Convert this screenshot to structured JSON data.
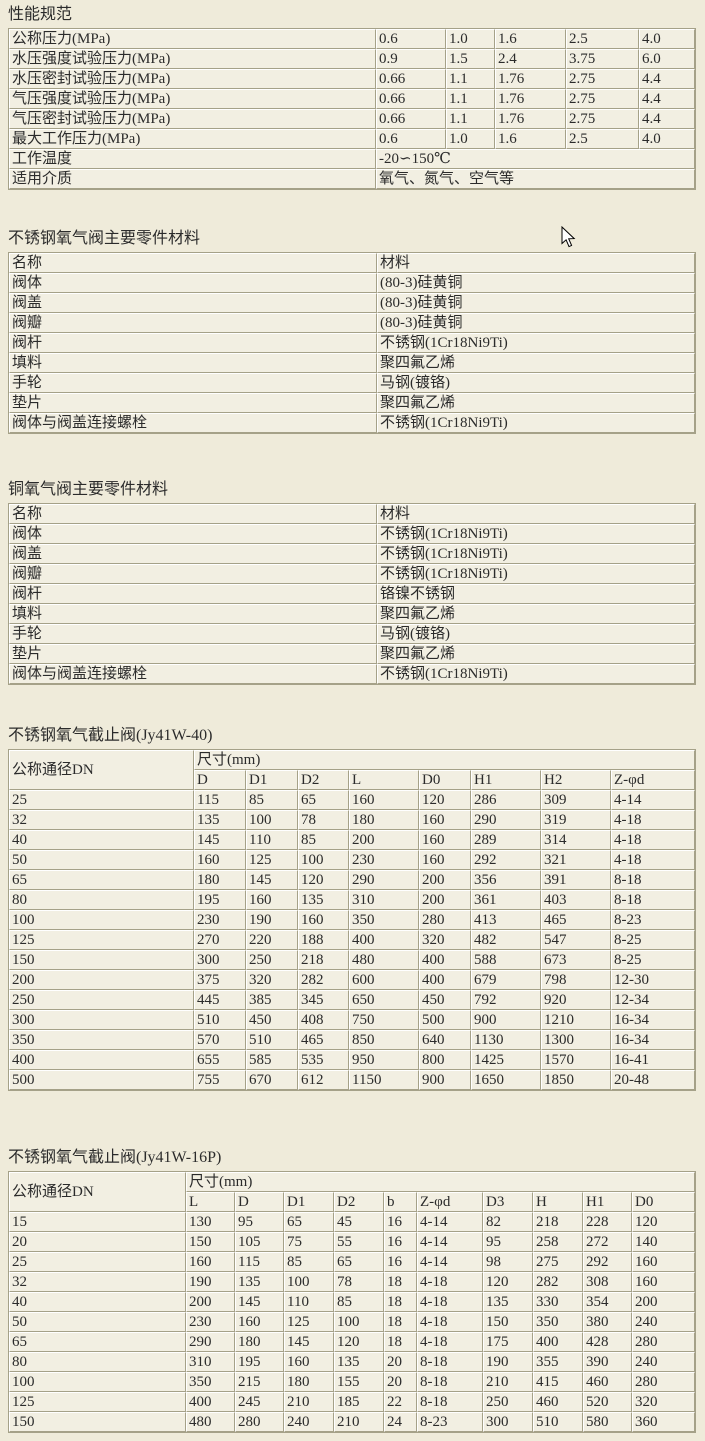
{
  "colors": {
    "page_bg": "#EFEBDA",
    "cell_bg": "#F2EFE2",
    "grid_dark": "#A5A188",
    "grid_light": "#FFFFFF",
    "text": "#2B2B2B"
  },
  "cursor": {
    "icon": "arrow-pointer-icon"
  },
  "sections": {
    "performance": {
      "title": "性能规范",
      "rows": [
        {
          "label": "公称压力(MPa)",
          "values": [
            "0.6",
            "1.0",
            "1.6",
            "2.5",
            "4.0"
          ]
        },
        {
          "label": "水压强度试验压力(MPa)",
          "values": [
            "0.9",
            "1.5",
            "2.4",
            "3.75",
            "6.0"
          ]
        },
        {
          "label": "水压密封试验压力(MPa)",
          "values": [
            "0.66",
            "1.1",
            "1.76",
            "2.75",
            "4.4"
          ]
        },
        {
          "label": "气压强度试验压力(MPa)",
          "values": [
            "0.66",
            "1.1",
            "1.76",
            "2.75",
            "4.4"
          ]
        },
        {
          "label": "气压密封试验压力(MPa)",
          "values": [
            "0.66",
            "1.1",
            "1.76",
            "2.75",
            "4.4"
          ]
        },
        {
          "label": "最大工作压力(MPa)",
          "values": [
            "0.6",
            "1.0",
            "1.6",
            "2.5",
            "4.0"
          ]
        },
        {
          "label": "工作温度",
          "span": "-20∽150℃"
        },
        {
          "label": "适用介质",
          "span": "氧气、氮气、空气等"
        }
      ]
    },
    "materials_ss": {
      "title": "不锈钢氧气阀主要零件材料",
      "headers": [
        "名称",
        "材料"
      ],
      "rows": [
        [
          "阀体",
          "(80-3)硅黄铜"
        ],
        [
          "阀盖",
          "(80-3)硅黄铜"
        ],
        [
          "阀瓣",
          "(80-3)硅黄铜"
        ],
        [
          "阀杆",
          "不锈钢(1Cr18Ni9Ti)"
        ],
        [
          "填料",
          "聚四氟乙烯"
        ],
        [
          "手轮",
          "马钢(镀铬)"
        ],
        [
          "垫片",
          "聚四氟乙烯"
        ],
        [
          "阀体与阀盖连接螺栓",
          "不锈钢(1Cr18Ni9Ti)"
        ]
      ]
    },
    "materials_cu": {
      "title": "铜氧气阀主要零件材料",
      "headers": [
        "名称",
        "材料"
      ],
      "rows": [
        [
          "阀体",
          "不锈钢(1Cr18Ni9Ti)"
        ],
        [
          "阀盖",
          "不锈钢(1Cr18Ni9Ti)"
        ],
        [
          "阀瓣",
          "不锈钢(1Cr18Ni9Ti)"
        ],
        [
          "阀杆",
          "铬镍不锈钢"
        ],
        [
          "填料",
          "聚四氟乙烯"
        ],
        [
          "手轮",
          "马钢(镀铬)"
        ],
        [
          "垫片",
          "聚四氟乙烯"
        ],
        [
          "阀体与阀盖连接螺栓",
          "不锈钢(1Cr18Ni9Ti)"
        ]
      ]
    },
    "dims_40": {
      "title": "不锈钢氧气截止阀(Jy41W-40)",
      "corner": "公称通径DN",
      "group": "尺寸(mm)",
      "cols": [
        "D",
        "D1",
        "D2",
        "L",
        "D0",
        "H1",
        "H2",
        "Z-φd"
      ],
      "rows": [
        [
          "25",
          "115",
          "85",
          "65",
          "160",
          "120",
          "286",
          "309",
          "4-14"
        ],
        [
          "32",
          "135",
          "100",
          "78",
          "180",
          "160",
          "290",
          "319",
          "4-18"
        ],
        [
          "40",
          "145",
          "110",
          "85",
          "200",
          "160",
          "289",
          "314",
          "4-18"
        ],
        [
          "50",
          "160",
          "125",
          "100",
          "230",
          "160",
          "292",
          "321",
          "4-18"
        ],
        [
          "65",
          "180",
          "145",
          "120",
          "290",
          "200",
          "356",
          "391",
          "8-18"
        ],
        [
          "80",
          "195",
          "160",
          "135",
          "310",
          "200",
          "361",
          "403",
          "8-18"
        ],
        [
          "100",
          "230",
          "190",
          "160",
          "350",
          "280",
          "413",
          "465",
          "8-23"
        ],
        [
          "125",
          "270",
          "220",
          "188",
          "400",
          "320",
          "482",
          "547",
          "8-25"
        ],
        [
          "150",
          "300",
          "250",
          "218",
          "480",
          "400",
          "588",
          "673",
          "8-25"
        ],
        [
          "200",
          "375",
          "320",
          "282",
          "600",
          "400",
          "679",
          "798",
          "12-30"
        ],
        [
          "250",
          "445",
          "385",
          "345",
          "650",
          "450",
          "792",
          "920",
          "12-34"
        ],
        [
          "300",
          "510",
          "450",
          "408",
          "750",
          "500",
          "900",
          "1210",
          "16-34"
        ],
        [
          "350",
          "570",
          "510",
          "465",
          "850",
          "640",
          "1130",
          "1300",
          "16-34"
        ],
        [
          "400",
          "655",
          "585",
          "535",
          "950",
          "800",
          "1425",
          "1570",
          "16-41"
        ],
        [
          "500",
          "755",
          "670",
          "612",
          "1150",
          "900",
          "1650",
          "1850",
          "20-48"
        ]
      ]
    },
    "dims_16p": {
      "title": "不锈钢氧气截止阀(Jy41W-16P)",
      "corner": "公称通径DN",
      "group": "尺寸(mm)",
      "cols": [
        "L",
        "D",
        "D1",
        "D2",
        "b",
        "Z-φd",
        "D3",
        "H",
        "H1",
        "D0"
      ],
      "rows": [
        [
          "15",
          "130",
          "95",
          "65",
          "45",
          "16",
          "4-14",
          "82",
          "218",
          "228",
          "120"
        ],
        [
          "20",
          "150",
          "105",
          "75",
          "55",
          "16",
          "4-14",
          "95",
          "258",
          "272",
          "140"
        ],
        [
          "25",
          "160",
          "115",
          "85",
          "65",
          "16",
          "4-14",
          "98",
          "275",
          "292",
          "160"
        ],
        [
          "32",
          "190",
          "135",
          "100",
          "78",
          "18",
          "4-18",
          "120",
          "282",
          "308",
          "160"
        ],
        [
          "40",
          "200",
          "145",
          "110",
          "85",
          "18",
          "4-18",
          "135",
          "330",
          "354",
          "200"
        ],
        [
          "50",
          "230",
          "160",
          "125",
          "100",
          "18",
          "4-18",
          "150",
          "350",
          "380",
          "240"
        ],
        [
          "65",
          "290",
          "180",
          "145",
          "120",
          "18",
          "4-18",
          "175",
          "400",
          "428",
          "280"
        ],
        [
          "80",
          "310",
          "195",
          "160",
          "135",
          "20",
          "8-18",
          "190",
          "355",
          "390",
          "240"
        ],
        [
          "100",
          "350",
          "215",
          "180",
          "155",
          "20",
          "8-18",
          "210",
          "415",
          "460",
          "280"
        ],
        [
          "125",
          "400",
          "245",
          "210",
          "185",
          "22",
          "8-18",
          "250",
          "460",
          "520",
          "320"
        ],
        [
          "150",
          "480",
          "280",
          "240",
          "210",
          "24",
          "8-23",
          "300",
          "510",
          "580",
          "360"
        ]
      ]
    }
  }
}
